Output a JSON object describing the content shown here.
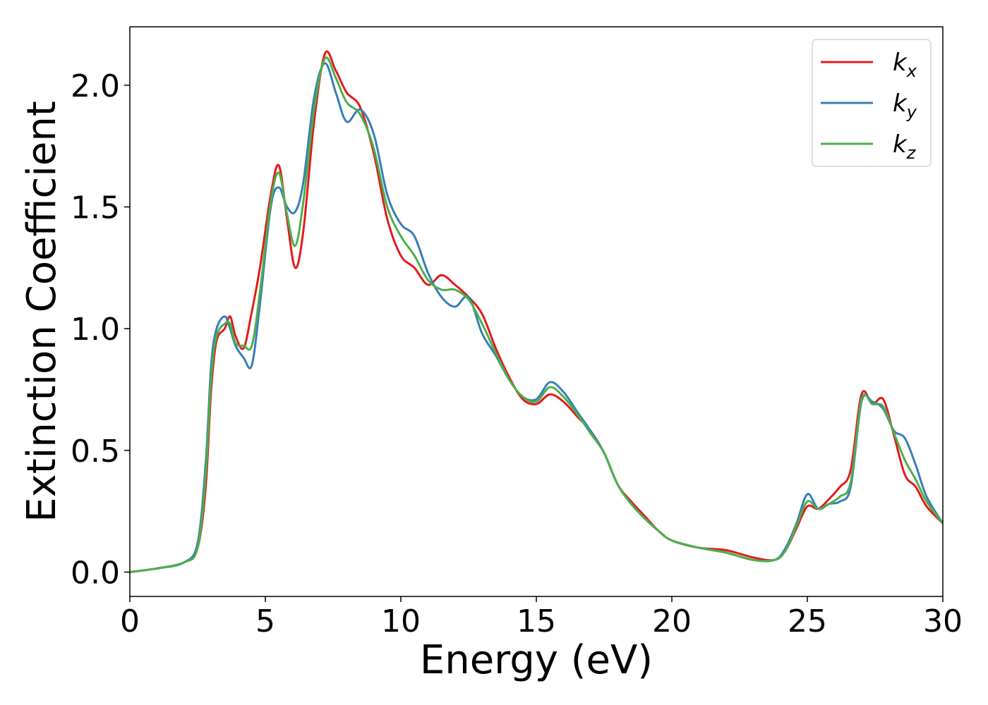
{
  "chart_data": {
    "type": "line",
    "title": "",
    "xlabel": "Energy (eV)",
    "ylabel": "Extinction Coefficient",
    "xlim": [
      0,
      30
    ],
    "ylim": [
      -0.1,
      2.24
    ],
    "xticks": [
      0,
      5,
      10,
      15,
      20,
      25,
      30
    ],
    "xtick_labels": [
      "0",
      "5",
      "10",
      "15",
      "20",
      "25",
      "30"
    ],
    "yticks": [
      0.0,
      0.5,
      1.0,
      1.5,
      2.0
    ],
    "ytick_labels": [
      "0.0",
      "0.5",
      "1.0",
      "1.5",
      "2.0"
    ],
    "grid": false,
    "legend_position": "top-right",
    "series": [
      {
        "name": "k",
        "subscript": "x",
        "color": "#e41a1c",
        "x": [
          0,
          1,
          2,
          2.5,
          2.8,
          3.0,
          3.2,
          3.5,
          3.7,
          3.9,
          4.2,
          4.5,
          4.8,
          5.2,
          5.5,
          5.8,
          6.1,
          6.4,
          6.8,
          7.2,
          7.6,
          8.0,
          8.5,
          9.0,
          9.5,
          10.0,
          10.5,
          11.0,
          11.5,
          12.0,
          12.5,
          13.0,
          13.5,
          14.0,
          14.5,
          15.0,
          15.5,
          16.0,
          16.5,
          17.0,
          17.5,
          18.0,
          18.5,
          19.0,
          19.5,
          20.0,
          21.0,
          22.0,
          23.0,
          23.8,
          24.2,
          24.6,
          25.0,
          25.4,
          25.8,
          26.2,
          26.6,
          27.0,
          27.4,
          27.8,
          28.2,
          28.6,
          29.0,
          29.4,
          30.0
        ],
        "y": [
          0.0,
          0.015,
          0.04,
          0.1,
          0.35,
          0.75,
          0.95,
          1.0,
          1.05,
          0.97,
          0.92,
          1.07,
          1.25,
          1.55,
          1.67,
          1.45,
          1.25,
          1.4,
          1.85,
          2.13,
          2.06,
          1.97,
          1.91,
          1.72,
          1.45,
          1.3,
          1.25,
          1.18,
          1.22,
          1.18,
          1.13,
          1.06,
          0.92,
          0.8,
          0.71,
          0.69,
          0.73,
          0.7,
          0.64,
          0.58,
          0.49,
          0.36,
          0.29,
          0.23,
          0.17,
          0.13,
          0.1,
          0.09,
          0.06,
          0.05,
          0.09,
          0.18,
          0.27,
          0.26,
          0.3,
          0.35,
          0.42,
          0.73,
          0.69,
          0.71,
          0.56,
          0.4,
          0.35,
          0.27,
          0.2
        ]
      },
      {
        "name": "k",
        "subscript": "y",
        "color": "#377eb8",
        "x": [
          0,
          1,
          2,
          2.5,
          2.8,
          3.0,
          3.2,
          3.5,
          3.7,
          3.9,
          4.2,
          4.5,
          4.8,
          5.2,
          5.5,
          5.8,
          6.1,
          6.4,
          6.8,
          7.2,
          7.6,
          8.0,
          8.5,
          9.0,
          9.5,
          10.0,
          10.5,
          11.0,
          11.5,
          12.0,
          12.5,
          13.0,
          13.5,
          14.0,
          14.5,
          15.0,
          15.5,
          16.0,
          16.5,
          17.0,
          17.5,
          18.0,
          18.5,
          19.0,
          19.5,
          20.0,
          21.0,
          22.0,
          23.0,
          23.8,
          24.2,
          24.6,
          25.0,
          25.4,
          25.8,
          26.2,
          26.6,
          27.0,
          27.4,
          27.8,
          28.2,
          28.6,
          29.0,
          29.4,
          30.0
        ],
        "y": [
          0.0,
          0.015,
          0.04,
          0.12,
          0.45,
          0.85,
          1.0,
          1.05,
          1.0,
          0.93,
          0.88,
          0.85,
          1.1,
          1.5,
          1.58,
          1.5,
          1.48,
          1.6,
          1.95,
          2.09,
          1.97,
          1.85,
          1.9,
          1.8,
          1.55,
          1.43,
          1.38,
          1.23,
          1.13,
          1.09,
          1.13,
          0.98,
          0.89,
          0.79,
          0.72,
          0.71,
          0.78,
          0.74,
          0.66,
          0.58,
          0.49,
          0.36,
          0.28,
          0.22,
          0.17,
          0.13,
          0.1,
          0.08,
          0.05,
          0.05,
          0.1,
          0.2,
          0.32,
          0.26,
          0.28,
          0.29,
          0.35,
          0.7,
          0.7,
          0.67,
          0.58,
          0.55,
          0.44,
          0.31,
          0.2
        ]
      },
      {
        "name": "k",
        "subscript": "z",
        "color": "#4daf4a",
        "x": [
          0,
          1,
          2,
          2.5,
          2.8,
          3.0,
          3.2,
          3.5,
          3.7,
          3.9,
          4.2,
          4.5,
          4.8,
          5.2,
          5.5,
          5.8,
          6.1,
          6.4,
          6.8,
          7.2,
          7.6,
          8.0,
          8.5,
          9.0,
          9.5,
          10.0,
          10.5,
          11.0,
          11.5,
          12.0,
          12.5,
          13.0,
          13.5,
          14.0,
          14.5,
          15.0,
          15.5,
          16.0,
          16.5,
          17.0,
          17.5,
          18.0,
          18.5,
          19.0,
          19.5,
          20.0,
          21.0,
          22.0,
          23.0,
          23.8,
          24.2,
          24.6,
          25.0,
          25.4,
          25.8,
          26.2,
          26.6,
          27.0,
          27.4,
          27.8,
          28.2,
          28.6,
          29.0,
          29.4,
          30.0
        ],
        "y": [
          0.0,
          0.015,
          0.04,
          0.1,
          0.4,
          0.8,
          0.97,
          1.02,
          1.02,
          0.94,
          0.93,
          0.93,
          1.15,
          1.52,
          1.64,
          1.47,
          1.34,
          1.52,
          1.9,
          2.11,
          2.03,
          1.93,
          1.88,
          1.74,
          1.5,
          1.38,
          1.3,
          1.2,
          1.16,
          1.16,
          1.12,
          1.02,
          0.9,
          0.79,
          0.72,
          0.7,
          0.76,
          0.72,
          0.65,
          0.57,
          0.49,
          0.36,
          0.28,
          0.22,
          0.17,
          0.13,
          0.1,
          0.08,
          0.05,
          0.05,
          0.09,
          0.19,
          0.29,
          0.26,
          0.28,
          0.31,
          0.37,
          0.71,
          0.69,
          0.68,
          0.57,
          0.46,
          0.38,
          0.29,
          0.2
        ]
      }
    ]
  }
}
